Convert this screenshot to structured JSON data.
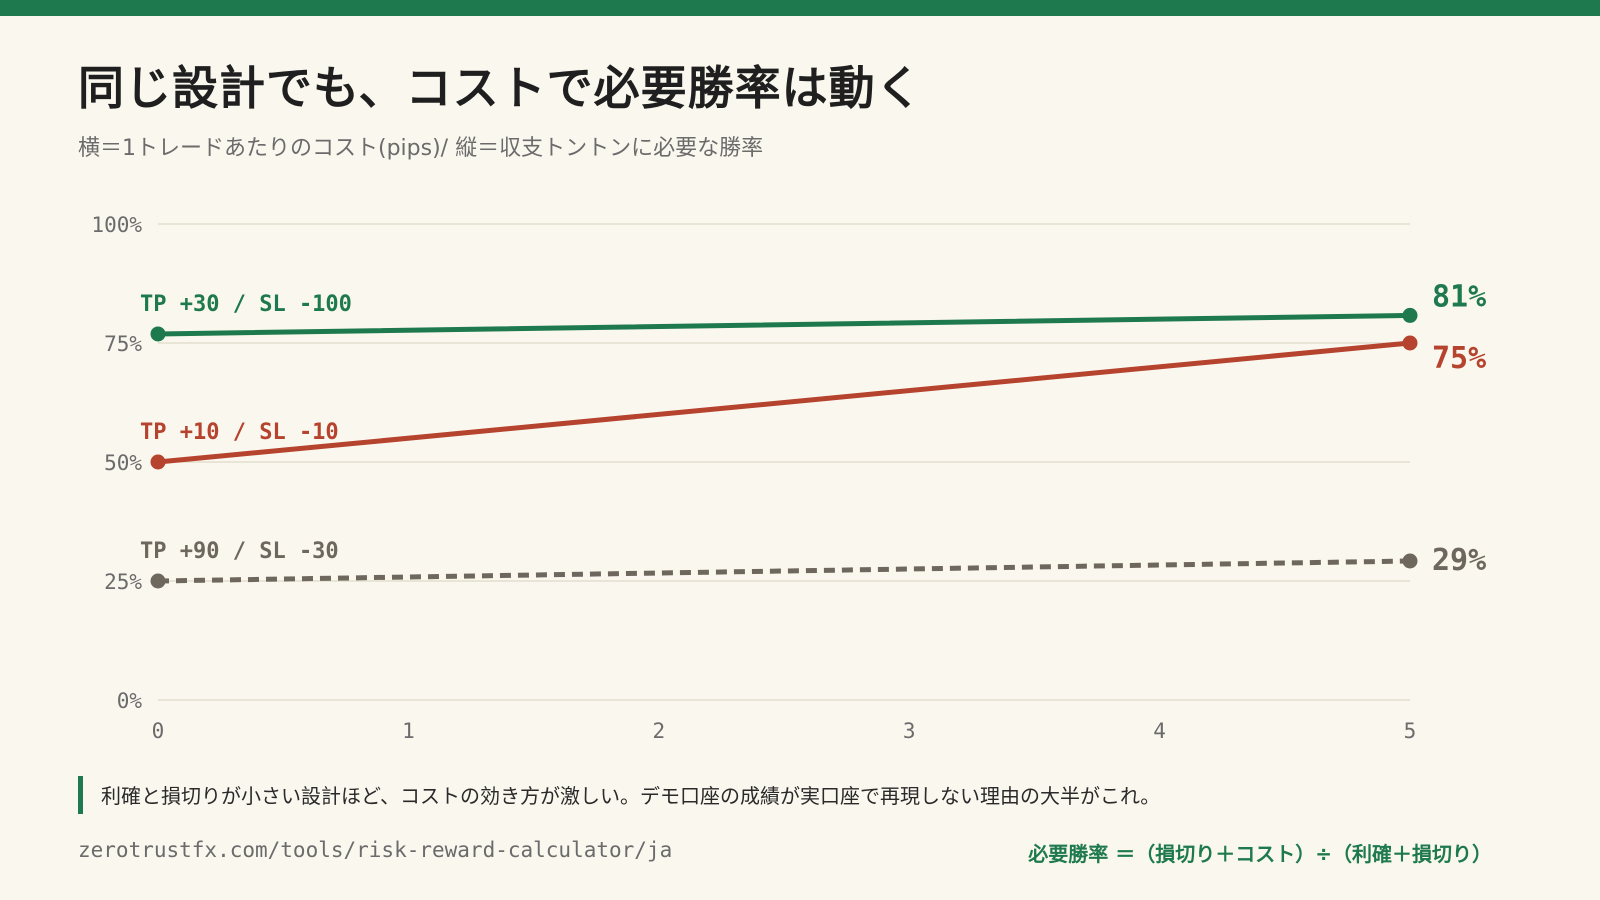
{
  "header": {
    "title": "同じ設計でも、コストで必要勝率は動く",
    "subtitle": "横＝1トレードあたりのコスト(pips)/ 縦＝収支トントンに必要な勝率"
  },
  "note": "利確と損切りが小さい設計ほど、コストの効き方が激しい。デモ口座の成績が実口座で再現しない理由の大半がこれ。",
  "footer": {
    "url": "zerotrustfx.com/tools/risk-reward-calculator/ja",
    "formula": "必要勝率 ＝（損切り＋コスト）÷（利確＋損切り）"
  },
  "colors": {
    "accent": "#1e7a4e",
    "green": "#1e7a4e",
    "red": "#b5432e",
    "gray": "#6e675d",
    "grid": "#ddd8c8",
    "axis_text": "#6b6b6b"
  },
  "chart_data": {
    "type": "line",
    "title": "",
    "xlabel": "",
    "ylabel": "",
    "x": [
      0,
      5
    ],
    "xlim": [
      0,
      5
    ],
    "x_ticks": [
      "0",
      "1",
      "2",
      "3",
      "4",
      "5"
    ],
    "ylim": [
      0,
      100
    ],
    "y_ticks": [
      "0%",
      "25%",
      "50%",
      "75%",
      "100%"
    ],
    "grid": true,
    "series": [
      {
        "name": "TP +30 / SL -100",
        "values": [
          76.9,
          80.8
        ],
        "end_label": "81%",
        "color": "#1e7a4e",
        "style": "solid"
      },
      {
        "name": "TP +10 / SL -10",
        "values": [
          50,
          75
        ],
        "end_label": "75%",
        "color": "#b5432e",
        "style": "solid"
      },
      {
        "name": "TP +90 / SL -30",
        "values": [
          25,
          29.2
        ],
        "end_label": "29%",
        "color": "#6e675d",
        "style": "dashed"
      }
    ]
  }
}
